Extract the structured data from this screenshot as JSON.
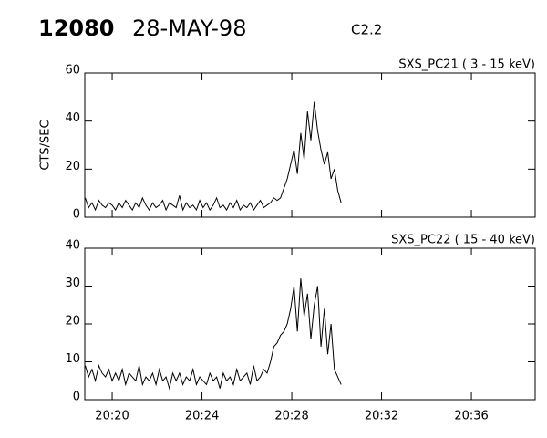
{
  "header": {
    "number": "12080",
    "date": "28-MAY-98",
    "class": "C2.2"
  },
  "chart_data": [
    {
      "type": "line",
      "subtitle": "SXS_PC21  (  3 - 15 keV)",
      "y_label": "CTS/SEC",
      "color": "#000000",
      "xlim": [
        1218.78,
        1238.84
      ],
      "ylim": [
        0,
        60
      ],
      "yticks": [
        0,
        20,
        40,
        60
      ],
      "xticks": [
        {
          "value": 1220,
          "label": "20:20"
        },
        {
          "value": 1224,
          "label": "20:24"
        },
        {
          "value": 1228,
          "label": "20:28"
        },
        {
          "value": 1232,
          "label": "20:32"
        },
        {
          "value": 1236,
          "label": "20:36"
        }
      ],
      "xtick_labels": false,
      "x": [
        1218.8,
        1218.95,
        1219.1,
        1219.25,
        1219.4,
        1219.55,
        1219.7,
        1219.85,
        1220,
        1220.15,
        1220.3,
        1220.45,
        1220.6,
        1220.75,
        1220.9,
        1221.05,
        1221.2,
        1221.35,
        1221.5,
        1221.65,
        1221.8,
        1221.95,
        1222.1,
        1222.25,
        1222.4,
        1222.55,
        1222.7,
        1222.85,
        1223,
        1223.15,
        1223.3,
        1223.45,
        1223.6,
        1223.75,
        1223.9,
        1224.05,
        1224.2,
        1224.35,
        1224.5,
        1224.65,
        1224.8,
        1224.95,
        1225.1,
        1225.25,
        1225.4,
        1225.55,
        1225.7,
        1225.85,
        1226,
        1226.15,
        1226.3,
        1226.45,
        1226.6,
        1226.75,
        1226.9,
        1227.05,
        1227.2,
        1227.35,
        1227.5,
        1227.65,
        1227.8,
        1227.95,
        1228.1,
        1228.25,
        1228.4,
        1228.55,
        1228.7,
        1228.85,
        1229,
        1229.15,
        1229.3,
        1229.45,
        1229.6,
        1229.75,
        1229.9,
        1230.05,
        1230.2
      ],
      "values": [
        8,
        4,
        6,
        3,
        7,
        5,
        4,
        6,
        5,
        3,
        6,
        4,
        7,
        5,
        3,
        6,
        4,
        8,
        5,
        3,
        6,
        4,
        5,
        7,
        3,
        6,
        5,
        4,
        9,
        3,
        6,
        4,
        5,
        3,
        7,
        4,
        6,
        3,
        5,
        8,
        4,
        5,
        3,
        6,
        4,
        7,
        3,
        5,
        4,
        6,
        3,
        5,
        7,
        4,
        5,
        6,
        8,
        7,
        8,
        12,
        16,
        22,
        28,
        18,
        35,
        24,
        44,
        32,
        48,
        36,
        28,
        22,
        27,
        16,
        20,
        11,
        6
      ]
    },
    {
      "type": "line",
      "subtitle": "SXS_PC22  ( 15 - 40 keV)",
      "color": "#000000",
      "xlim": [
        1218.78,
        1238.84
      ],
      "ylim": [
        0,
        40
      ],
      "yticks": [
        0,
        10,
        20,
        30,
        40
      ],
      "xticks": [
        {
          "value": 1220,
          "label": "20:20"
        },
        {
          "value": 1224,
          "label": "20:24"
        },
        {
          "value": 1228,
          "label": "20:28"
        },
        {
          "value": 1232,
          "label": "20:32"
        },
        {
          "value": 1236,
          "label": "20:36"
        }
      ],
      "xtick_labels": true,
      "x": [
        1218.8,
        1218.95,
        1219.1,
        1219.25,
        1219.4,
        1219.55,
        1219.7,
        1219.85,
        1220,
        1220.15,
        1220.3,
        1220.45,
        1220.6,
        1220.75,
        1220.9,
        1221.05,
        1221.2,
        1221.35,
        1221.5,
        1221.65,
        1221.8,
        1221.95,
        1222.1,
        1222.25,
        1222.4,
        1222.55,
        1222.7,
        1222.85,
        1223,
        1223.15,
        1223.3,
        1223.45,
        1223.6,
        1223.75,
        1223.9,
        1224.05,
        1224.2,
        1224.35,
        1224.5,
        1224.65,
        1224.8,
        1224.95,
        1225.1,
        1225.25,
        1225.4,
        1225.55,
        1225.7,
        1225.85,
        1226,
        1226.15,
        1226.3,
        1226.45,
        1226.6,
        1226.75,
        1226.9,
        1227.05,
        1227.2,
        1227.35,
        1227.5,
        1227.65,
        1227.8,
        1227.95,
        1228.1,
        1228.25,
        1228.4,
        1228.55,
        1228.7,
        1228.85,
        1229,
        1229.15,
        1229.3,
        1229.45,
        1229.6,
        1229.75,
        1229.9,
        1230.05,
        1230.2
      ],
      "values": [
        9,
        6,
        8,
        5,
        9,
        7,
        6,
        8,
        5,
        7,
        5,
        8,
        4,
        7,
        6,
        5,
        9,
        4,
        6,
        5,
        7,
        4,
        8,
        5,
        6,
        3,
        7,
        5,
        7,
        4,
        6,
        5,
        8,
        4,
        6,
        5,
        4,
        7,
        5,
        6,
        3,
        7,
        5,
        6,
        4,
        8,
        5,
        6,
        7,
        4,
        9,
        5,
        6,
        8,
        7,
        10,
        14,
        15,
        17,
        18,
        20,
        24,
        30,
        18,
        32,
        22,
        28,
        16,
        25,
        30,
        14,
        24,
        12,
        20,
        8,
        6,
        4
      ]
    }
  ]
}
